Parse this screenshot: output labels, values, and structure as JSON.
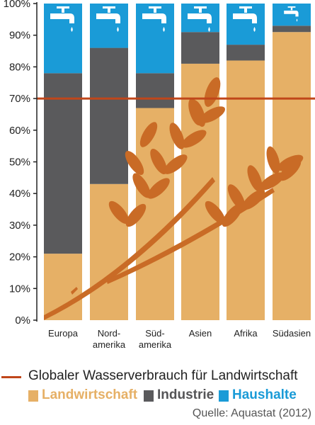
{
  "chart_data": {
    "type": "bar",
    "stacked": true,
    "categories": [
      [
        "Europa"
      ],
      [
        "Nord-",
        "amerika"
      ],
      [
        "Süd-",
        "amerika"
      ],
      [
        "Asien"
      ],
      [
        "Afrika"
      ],
      [
        "Südasien"
      ]
    ],
    "series": [
      {
        "name": "Landwirtschaft",
        "color": "#e6b066",
        "values": [
          21,
          43,
          67,
          81,
          82,
          91
        ]
      },
      {
        "name": "Industrie",
        "color": "#5a5a5c",
        "values": [
          57,
          43,
          11,
          10,
          5,
          2
        ]
      },
      {
        "name": "Haushalte",
        "color": "#1a9bd7",
        "values": [
          22,
          14,
          22,
          9,
          13,
          7
        ]
      }
    ],
    "reference_line": {
      "value": 70,
      "label": "Globaler Wasserverbrauch für Landwirtschaft",
      "color": "#c0461a"
    },
    "ylim": [
      0,
      100
    ],
    "yticks": [
      "0%",
      "10%",
      "20%",
      "30%",
      "40%",
      "50%",
      "60%",
      "70%",
      "80%",
      "90%",
      "100%"
    ],
    "grid": false,
    "legend_placement": "bottom",
    "source": "Quelle: Aquastat (2012)"
  }
}
